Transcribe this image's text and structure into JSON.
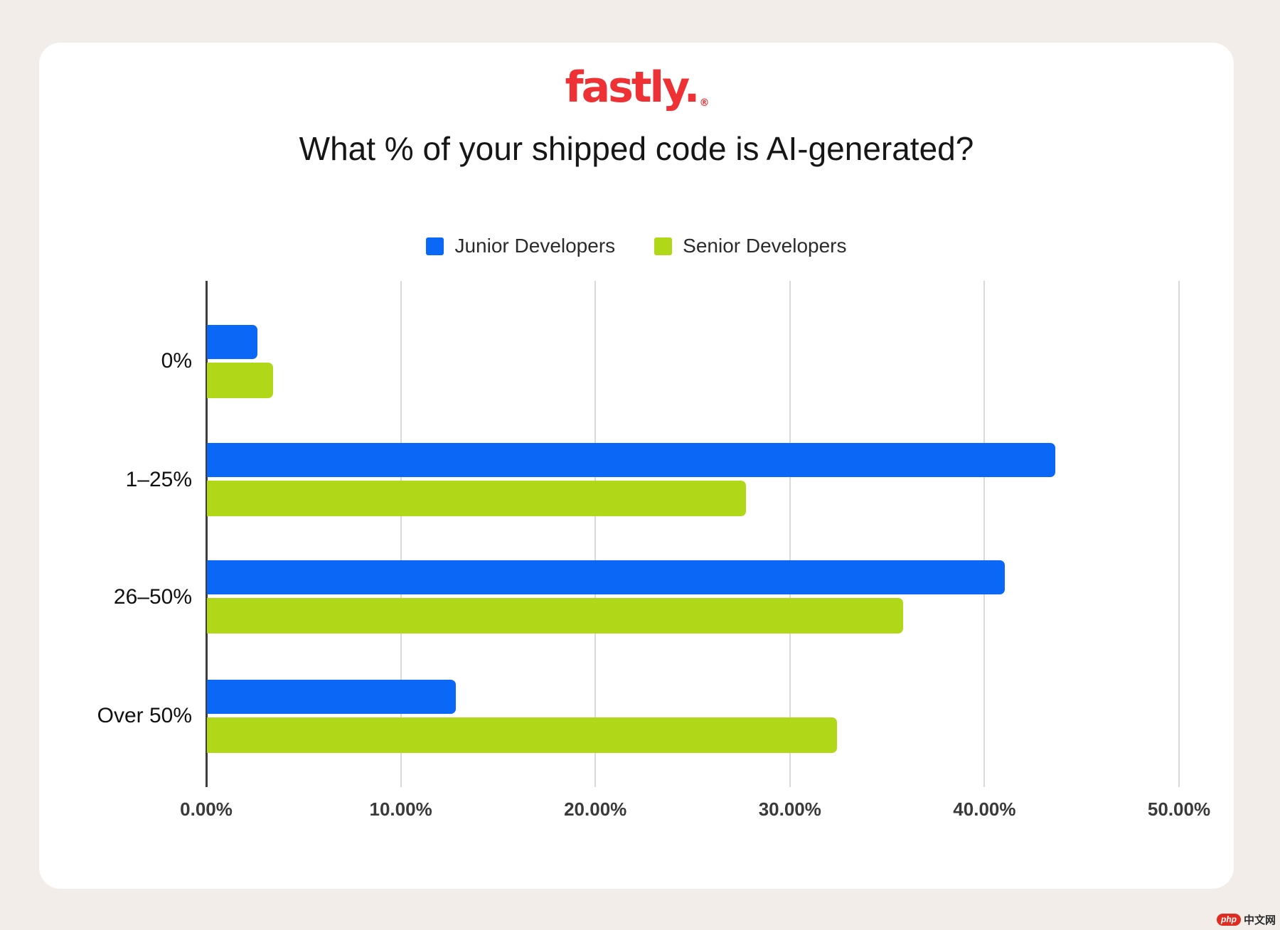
{
  "page": {
    "background_color": "#f2ede8",
    "card_color": "#ffffff",
    "watermark": {
      "brand": "php",
      "text": "中文网",
      "brand_color": "#e02b20"
    }
  },
  "logo": {
    "text": "fastly.",
    "mark": "®",
    "color": "#ee3135"
  },
  "title": "What % of your shipped code is AI-generated?",
  "legend": [
    {
      "label": "Junior Developers",
      "color": "#0b68f7"
    },
    {
      "label": "Senior Developers",
      "color": "#b0d818"
    }
  ],
  "chart_data": {
    "type": "bar",
    "orientation": "horizontal",
    "title": "What % of your shipped code is AI-generated?",
    "categories": [
      "0%",
      "1–25%",
      "26–50%",
      "Over 50%"
    ],
    "series": [
      {
        "name": "Junior Developers",
        "color": "#0b68f7",
        "values": [
          2.6,
          43.6,
          41.0,
          12.8
        ]
      },
      {
        "name": "Senior Developers",
        "color": "#b0d818",
        "values": [
          3.4,
          27.7,
          35.8,
          32.4
        ]
      }
    ],
    "xlabel": "",
    "ylabel": "",
    "xlim": [
      0,
      52.6
    ],
    "x_ticks": [
      0,
      10,
      20,
      30,
      40,
      50
    ],
    "x_tick_labels": [
      "0.00%",
      "10.00%",
      "20.00%",
      "30.00%",
      "40.00%",
      "50.00%"
    ],
    "grid": "vertical",
    "gridline_color": "#d9d9d9",
    "axis_color": "#3d3d3d",
    "legend_position": "top"
  }
}
